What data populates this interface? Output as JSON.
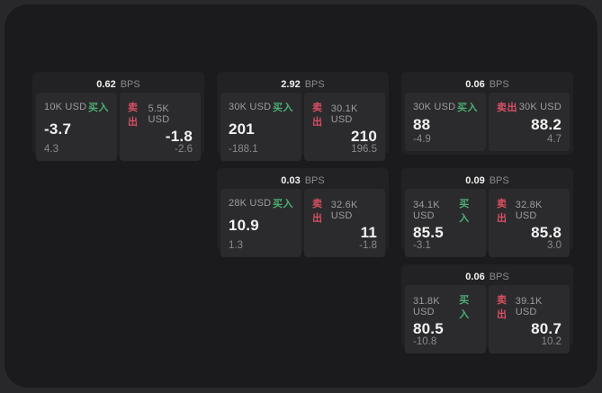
{
  "colors": {
    "backdrop": "#28282a",
    "window": "#1b1b1d",
    "card": "#222224",
    "panel": "#2b2b2d",
    "text_primary": "#f2f2f2",
    "text_secondary": "#9c9c9e",
    "text_dim": "#8a8a8c",
    "buy_green": "#4cae73",
    "sell_red": "#d84f63"
  },
  "cards": [
    {
      "row": 0,
      "col": 0,
      "bps": "0.62",
      "unit": "BPS",
      "buy": {
        "size": "10K USD",
        "side": "买入",
        "price": "-3.7",
        "delta": "4.3"
      },
      "sell": {
        "side": "卖出",
        "size": "5.5K USD",
        "price": "-1.8",
        "delta": "-2.6"
      }
    },
    {
      "row": 0,
      "col": 1,
      "bps": "2.92",
      "unit": "BPS",
      "buy": {
        "size": "30K USD",
        "side": "买入",
        "price": "201",
        "delta": "-188.1"
      },
      "sell": {
        "side": "卖出",
        "size": "30.1K USD",
        "price": "210",
        "delta": "196.5"
      }
    },
    {
      "row": 0,
      "col": 2,
      "bps": "0.06",
      "unit": "BPS",
      "buy": {
        "size": "30K USD",
        "side": "买入",
        "price": "88",
        "delta": "-4.9"
      },
      "sell": {
        "side": "卖出",
        "size": "30K USD",
        "price": "88.2",
        "delta": "4.7"
      }
    },
    {
      "row": 1,
      "col": 1,
      "bps": "0.03",
      "unit": "BPS",
      "buy": {
        "size": "28K USD",
        "side": "买入",
        "price": "10.9",
        "delta": "1.3"
      },
      "sell": {
        "side": "卖出",
        "size": "32.6K USD",
        "price": "11",
        "delta": "-1.8"
      }
    },
    {
      "row": 1,
      "col": 2,
      "bps": "0.09",
      "unit": "BPS",
      "buy": {
        "size": "34.1K USD",
        "side": "买入",
        "price": "85.5",
        "delta": "-3.1"
      },
      "sell": {
        "side": "卖出",
        "size": "32.8K USD",
        "price": "85.8",
        "delta": "3.0"
      }
    },
    {
      "row": 2,
      "col": 2,
      "bps": "0.06",
      "unit": "BPS",
      "buy": {
        "size": "31.8K USD",
        "side": "买入",
        "price": "80.5",
        "delta": "-10.8"
      },
      "sell": {
        "side": "卖出",
        "size": "39.1K USD",
        "price": "80.7",
        "delta": "10.2"
      }
    }
  ]
}
